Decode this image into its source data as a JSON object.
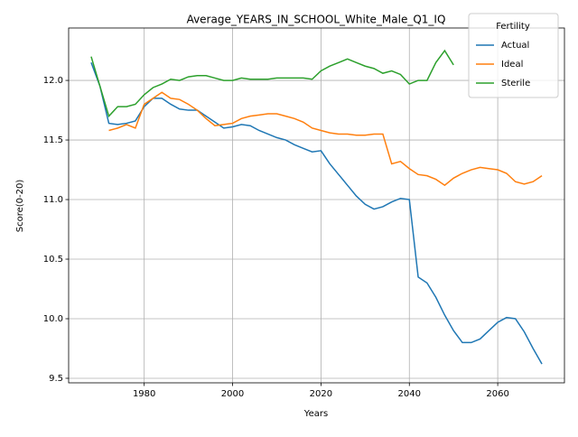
{
  "chart_data": {
    "type": "line",
    "title": "Average_YEARS_IN_SCHOOL_White_Male_Q1_IQ",
    "xlabel": "Years",
    "ylabel": "Score(0-20)",
    "x": [
      1968,
      1970,
      1972,
      1974,
      1976,
      1978,
      1980,
      1982,
      1984,
      1986,
      1988,
      1990,
      1992,
      1994,
      1996,
      1998,
      2000,
      2002,
      2004,
      2006,
      2008,
      2010,
      2012,
      2014,
      2016,
      2018,
      2020,
      2022,
      2024,
      2026,
      2028,
      2030,
      2032,
      2034,
      2036,
      2038,
      2040,
      2042,
      2044,
      2046,
      2048,
      2050,
      2052,
      2054,
      2056,
      2058,
      2060,
      2062,
      2064,
      2066,
      2068,
      2070
    ],
    "series": [
      {
        "name": "Actual",
        "color": "#1f77b4",
        "values": [
          12.15,
          11.95,
          11.64,
          11.63,
          11.64,
          11.66,
          11.78,
          11.85,
          11.85,
          11.8,
          11.76,
          11.75,
          11.75,
          11.7,
          11.65,
          11.6,
          11.61,
          11.63,
          11.62,
          11.58,
          11.55,
          11.52,
          11.5,
          11.46,
          11.43,
          11.4,
          11.41,
          11.3,
          11.21,
          11.12,
          11.03,
          10.96,
          10.92,
          10.94,
          10.98,
          11.01,
          11.0,
          10.35,
          10.3,
          10.18,
          10.03,
          9.9,
          9.8,
          9.8,
          9.83,
          9.9,
          9.97,
          10.01,
          10.0,
          9.89,
          9.75,
          9.62
        ]
      },
      {
        "name": "Ideal",
        "color": "#ff7f0e",
        "values": [
          null,
          null,
          11.58,
          11.6,
          11.63,
          11.6,
          11.8,
          11.85,
          11.9,
          11.85,
          11.84,
          11.8,
          11.75,
          11.68,
          11.62,
          11.63,
          11.64,
          11.68,
          11.7,
          11.71,
          11.72,
          11.72,
          11.7,
          11.68,
          11.65,
          11.6,
          11.58,
          11.56,
          11.55,
          11.55,
          11.54,
          11.54,
          11.55,
          11.55,
          11.3,
          11.32,
          11.26,
          11.21,
          11.2,
          11.17,
          11.12,
          11.18,
          11.22,
          11.25,
          11.27,
          11.26,
          11.25,
          11.22,
          11.15,
          11.13,
          11.15,
          11.2
        ]
      },
      {
        "name": "Sterile",
        "color": "#2ca02c",
        "values": [
          12.2,
          11.95,
          11.7,
          11.78,
          11.78,
          11.8,
          11.88,
          11.94,
          11.97,
          12.01,
          12.0,
          12.03,
          12.04,
          12.04,
          12.02,
          12.0,
          12.0,
          12.02,
          12.01,
          12.01,
          12.01,
          12.02,
          12.02,
          12.02,
          12.02,
          12.01,
          12.08,
          12.12,
          12.15,
          12.18,
          12.15,
          12.12,
          12.1,
          12.06,
          12.08,
          12.05,
          11.97,
          12.0,
          12.0,
          12.15,
          12.25,
          12.13,
          null,
          null,
          null,
          null,
          null,
          null,
          null,
          null,
          null,
          null
        ]
      }
    ],
    "xlim": [
      1962.9,
      2075.1
    ],
    "xticks": [
      1980,
      2000,
      2020,
      2040,
      2060
    ],
    "ylim": [
      9.462,
      12.44
    ],
    "yticks": [
      9.5,
      {
        "value": 10,
        "label": "10.0"
      },
      10.5,
      {
        "value": 11,
        "label": "11.0"
      },
      11.5,
      {
        "value": 12,
        "label": "12.0"
      }
    ],
    "grid": true,
    "legend": {
      "title": "Fertility",
      "position": "upper right"
    }
  }
}
